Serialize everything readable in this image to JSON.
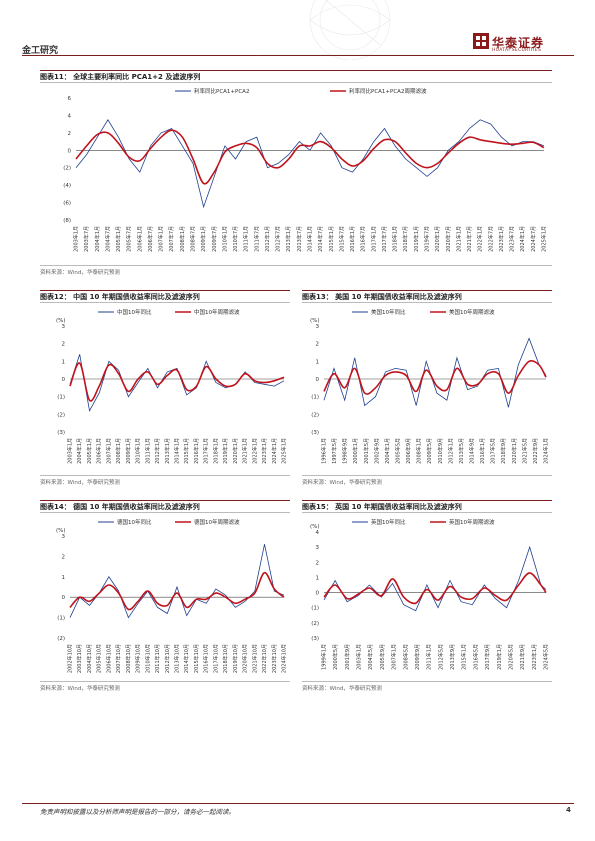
{
  "header": {
    "section": "金工研究",
    "brand_cn": "华泰证券",
    "brand_en": "HUATAI SECURITIES"
  },
  "footer": {
    "disclaimer": "免责声明和披露以及分析师声明是报告的一部分，请务必一起阅读。",
    "page": "4"
  },
  "colors": {
    "blue": "#1f3f8f",
    "red": "#c0141c",
    "brand": "#8b1a1a"
  },
  "figures": [
    {
      "title": "图表11：  全球主要利率同比 PCA1+2 及滤波序列",
      "source": "资料来源：Wind，华泰研究预测",
      "legend": [
        "利率同比PCA1+PCA2",
        "利率同比PCA1+PCA2周期滤波"
      ],
      "unit": "",
      "yticks": [
        "6",
        "4",
        "2",
        "0",
        "(2)",
        "(4)",
        "(6)",
        "(8)"
      ],
      "xticks": [
        "2003年1月",
        "2003年7月",
        "2004年1月",
        "2004年7月",
        "2005年1月",
        "2005年7月",
        "2006年1月",
        "2006年7月",
        "2007年1月",
        "2007年7月",
        "2008年1月",
        "2008年7月",
        "2009年1月",
        "2009年7月",
        "2010年1月",
        "2010年7月",
        "2011年1月",
        "2011年7月",
        "2012年1月",
        "2012年7月",
        "2013年1月",
        "2013年7月",
        "2014年1月",
        "2014年7月",
        "2015年1月",
        "2015年7月",
        "2016年1月",
        "2016年7月",
        "2017年1月",
        "2017年7月",
        "2018年1月",
        "2018年7月",
        "2019年1月",
        "2019年7月",
        "2020年1月",
        "2020年7月",
        "2021年1月",
        "2021年7月",
        "2022年1月",
        "2022年7月",
        "2023年1月",
        "2023年7月",
        "2024年1月",
        "2024年7月",
        "2025年1月"
      ]
    },
    {
      "title": "图表12：  中国 10 年期国债收益率同比及滤波序列",
      "source": "资料来源：Wind，华泰研究预测",
      "legend": [
        "中国10年同比",
        "中国10年周期滤波"
      ],
      "unit": "(%)",
      "yticks": [
        "3",
        "2",
        "1",
        "0",
        "(1)",
        "(2)",
        "(3)"
      ],
      "xticks": [
        "2003年1月",
        "2004年1月",
        "2005年1月",
        "2006年1月",
        "2007年1月",
        "2008年1月",
        "2009年1月",
        "2010年1月",
        "2011年1月",
        "2012年1月",
        "2013年1月",
        "2014年1月",
        "2015年1月",
        "2016年1月",
        "2017年1月",
        "2018年1月",
        "2019年1月",
        "2020年1月",
        "2021年1月",
        "2022年1月",
        "2023年1月",
        "2024年1月",
        "2025年1月"
      ]
    },
    {
      "title": "图表13：  美国 10 年期国债收益率同比及滤波序列",
      "source": "资料来源：Wind，华泰研究预测",
      "legend": [
        "美国10年同比",
        "美国10年周期滤波"
      ],
      "unit": "(%)",
      "yticks": [
        "3",
        "2",
        "1",
        "0",
        "(1)",
        "(2)",
        "(3)"
      ],
      "xticks": [
        "1996年1月",
        "1997年5月",
        "1998年9月",
        "2000年1月",
        "2001年5月",
        "2002年9月",
        "2004年1月",
        "2005年5月",
        "2006年9月",
        "2008年1月",
        "2009年5月",
        "2010年9月",
        "2012年1月",
        "2013年5月",
        "2014年9月",
        "2016年1月",
        "2017年5月",
        "2018年9月",
        "2020年1月",
        "2021年5月",
        "2022年9月",
        "2024年1月"
      ]
    },
    {
      "title": "图表14：  德国 10 年期国债收益率同比及滤波序列",
      "source": "资料来源：Wind，华泰研究预测",
      "legend": [
        "德国10年同比",
        "德国10年周期滤波"
      ],
      "unit": "(%)",
      "yticks": [
        "3",
        "2",
        "1",
        "0",
        "(1)",
        "(2)"
      ],
      "xticks": [
        "2002年10月",
        "2003年10月",
        "2004年10月",
        "2005年10月",
        "2006年10月",
        "2007年10月",
        "2008年10月",
        "2009年10月",
        "2010年10月",
        "2011年10月",
        "2012年10月",
        "2013年10月",
        "2014年10月",
        "2015年10月",
        "2016年10月",
        "2017年10月",
        "2018年10月",
        "2019年10月",
        "2020年10月",
        "2021年10月",
        "2022年10月",
        "2023年10月",
        "2024年10月"
      ]
    },
    {
      "title": "图表15：  英国 10 年期国债收益率同比及滤波序列",
      "source": "资料来源：Wind，华泰研究预测",
      "legend": [
        "英国10年同比",
        "英国10年周期滤波"
      ],
      "unit": "(%)",
      "yticks": [
        "4",
        "3",
        "2",
        "1",
        "0",
        "(1)",
        "(2)",
        "(3)"
      ],
      "xticks": [
        "1999年1月",
        "2000年5月",
        "2001年9月",
        "2003年1月",
        "2004年5月",
        "2005年9月",
        "2007年1月",
        "2008年5月",
        "2009年9月",
        "2011年1月",
        "2012年5月",
        "2013年9月",
        "2015年1月",
        "2016年5月",
        "2017年9月",
        "2019年1月",
        "2020年5月",
        "2021年9月",
        "2023年1月",
        "2024年5月"
      ]
    }
  ],
  "chart_data": [
    {
      "type": "line",
      "title": "图表11：  全球主要利率同比 PCA1+2 及滤波序列",
      "ylim": [
        -8,
        6
      ],
      "x_range": [
        "2003年1月",
        "2025年1月"
      ],
      "series": [
        {
          "name": "利率同比PCA1+PCA2",
          "x": [
            2003.0,
            2003.5,
            2004.0,
            2004.5,
            2005.0,
            2005.5,
            2006.0,
            2006.5,
            2007.0,
            2007.5,
            2008.0,
            2008.5,
            2009.0,
            2009.5,
            2010.0,
            2010.5,
            2011.0,
            2011.5,
            2012.0,
            2012.5,
            2013.0,
            2013.5,
            2014.0,
            2014.5,
            2015.0,
            2015.5,
            2016.0,
            2016.5,
            2017.0,
            2017.5,
            2018.0,
            2018.5,
            2019.0,
            2019.5,
            2020.0,
            2020.5,
            2021.0,
            2021.5,
            2022.0,
            2022.5,
            2023.0,
            2023.5,
            2024.0,
            2024.5,
            2025.0
          ],
          "values": [
            -2.0,
            -0.5,
            1.5,
            3.5,
            1.5,
            -1.0,
            -2.5,
            0.5,
            2.0,
            2.5,
            0.5,
            -1.5,
            -6.5,
            -3.0,
            0.5,
            -1.0,
            1.0,
            1.5,
            -2.0,
            -1.5,
            -0.5,
            1.0,
            0.0,
            2.0,
            0.5,
            -2.0,
            -2.5,
            -1.0,
            1.0,
            2.5,
            0.5,
            -1.0,
            -2.0,
            -3.0,
            -2.0,
            0.0,
            1.0,
            2.5,
            3.5,
            3.0,
            1.5,
            0.5,
            1.0,
            1.0,
            0.5
          ]
        },
        {
          "name": "利率同比PCA1+PCA2周期滤波",
          "x": [
            2003.0,
            2003.5,
            2004.0,
            2004.5,
            2005.0,
            2005.5,
            2006.0,
            2006.5,
            2007.0,
            2007.5,
            2008.0,
            2008.5,
            2009.0,
            2009.5,
            2010.0,
            2010.5,
            2011.0,
            2011.5,
            2012.0,
            2012.5,
            2013.0,
            2013.5,
            2014.0,
            2014.5,
            2015.0,
            2015.5,
            2016.0,
            2016.5,
            2017.0,
            2017.5,
            2018.0,
            2018.5,
            2019.0,
            2019.5,
            2020.0,
            2020.5,
            2021.0,
            2021.5,
            2022.0,
            2022.5,
            2023.0,
            2023.5,
            2024.0,
            2024.5,
            2025.0
          ],
          "values": [
            -1.0,
            0.5,
            1.8,
            2.0,
            0.8,
            -0.8,
            -1.2,
            0.2,
            1.5,
            2.3,
            1.5,
            -1.0,
            -3.8,
            -2.5,
            -0.2,
            0.5,
            0.8,
            0.3,
            -1.5,
            -2.0,
            -1.0,
            0.5,
            0.5,
            1.0,
            0.3,
            -1.0,
            -1.8,
            -1.2,
            0.2,
            1.2,
            1.0,
            -0.3,
            -1.5,
            -2.0,
            -1.5,
            -0.3,
            0.8,
            1.5,
            1.2,
            1.0,
            0.8,
            0.7,
            0.8,
            0.9,
            0.3
          ]
        }
      ]
    },
    {
      "type": "line",
      "title": "图表12：  中国 10 年期国债收益率同比及滤波序列",
      "ylabel": "(%)",
      "ylim": [
        -3,
        3
      ],
      "x_range": [
        "2003年1月",
        "2025年1月"
      ],
      "series": [
        {
          "name": "中国10年同比",
          "x": [
            2003,
            2004,
            2005,
            2006,
            2007,
            2008,
            2009,
            2010,
            2011,
            2012,
            2013,
            2014,
            2015,
            2016,
            2017,
            2018,
            2019,
            2020,
            2021,
            2022,
            2023,
            2024,
            2025
          ],
          "values": [
            -0.3,
            1.4,
            -1.8,
            -0.8,
            1.0,
            0.5,
            -1.0,
            -0.2,
            0.6,
            -0.5,
            0.4,
            0.6,
            -0.9,
            -0.5,
            1.0,
            -0.2,
            -0.5,
            -0.3,
            0.4,
            -0.2,
            -0.3,
            -0.4,
            -0.1
          ]
        },
        {
          "name": "中国10年周期滤波",
          "x": [
            2003,
            2004,
            2005,
            2006,
            2007,
            2008,
            2009,
            2010,
            2011,
            2012,
            2013,
            2014,
            2015,
            2016,
            2017,
            2018,
            2019,
            2020,
            2021,
            2022,
            2023,
            2024,
            2025
          ],
          "values": [
            -0.4,
            0.9,
            -1.2,
            -0.4,
            0.8,
            0.3,
            -0.7,
            0.0,
            0.4,
            -0.3,
            0.2,
            0.5,
            -0.6,
            -0.4,
            0.7,
            0.0,
            -0.4,
            -0.3,
            0.3,
            -0.1,
            -0.2,
            -0.1,
            0.1
          ]
        }
      ]
    },
    {
      "type": "line",
      "title": "图表13：  美国 10 年期国债收益率同比及滤波序列",
      "ylabel": "(%)",
      "ylim": [
        -3,
        3
      ],
      "x_range": [
        "1996年1月",
        "2024年12月"
      ],
      "series": [
        {
          "name": "美国10年同比",
          "x": [
            1996,
            1997.3,
            1998.7,
            2000,
            2001.3,
            2002.7,
            2004,
            2005.3,
            2006.7,
            2008,
            2009.3,
            2010.7,
            2012,
            2013.3,
            2014.7,
            2016,
            2017.3,
            2018.7,
            2020,
            2021.3,
            2022.7,
            2024,
            2024.9
          ],
          "values": [
            -1.2,
            0.6,
            -1.2,
            1.2,
            -1.5,
            -1.0,
            0.4,
            0.6,
            0.5,
            -1.5,
            1.0,
            -0.8,
            -1.2,
            1.2,
            -0.6,
            -0.4,
            0.5,
            0.6,
            -1.6,
            0.8,
            2.3,
            0.8,
            0.2
          ]
        },
        {
          "name": "美国10年周期滤波",
          "x": [
            1996,
            1997.3,
            1998.7,
            2000,
            2001.3,
            2002.7,
            2004,
            2005.3,
            2006.7,
            2008,
            2009.3,
            2010.7,
            2012,
            2013.3,
            2014.7,
            2016,
            2017.3,
            2018.7,
            2020,
            2021.3,
            2022.7,
            2024,
            2024.9
          ],
          "values": [
            -0.7,
            0.3,
            -0.5,
            0.6,
            -0.8,
            -0.5,
            0.2,
            0.4,
            0.2,
            -0.7,
            0.5,
            -0.4,
            -0.6,
            0.6,
            -0.3,
            -0.3,
            0.3,
            0.3,
            -0.8,
            0.2,
            1.0,
            0.8,
            0.1
          ]
        }
      ]
    },
    {
      "type": "line",
      "title": "图表14：  德国 10 年期国债收益率同比及滤波序列",
      "ylabel": "(%)",
      "ylim": [
        -2,
        3
      ],
      "x_range": [
        "2002年10月",
        "2024年10月"
      ],
      "series": [
        {
          "name": "德国10年同比",
          "x": [
            2002.8,
            2003.8,
            2004.8,
            2005.8,
            2006.8,
            2007.8,
            2008.8,
            2009.8,
            2010.8,
            2011.8,
            2012.8,
            2013.8,
            2014.8,
            2015.8,
            2016.8,
            2017.8,
            2018.8,
            2019.8,
            2020.8,
            2021.8,
            2022.8,
            2023.8,
            2024.8
          ],
          "values": [
            -1.0,
            0.0,
            -0.4,
            0.2,
            1.0,
            0.3,
            -1.0,
            -0.3,
            0.3,
            -0.5,
            -0.8,
            0.5,
            -0.9,
            -0.1,
            -0.3,
            0.4,
            0.1,
            -0.5,
            -0.2,
            0.3,
            2.6,
            0.3,
            0.1
          ]
        },
        {
          "name": "德国10年周期滤波",
          "x": [
            2002.8,
            2003.8,
            2004.8,
            2005.8,
            2006.8,
            2007.8,
            2008.8,
            2009.8,
            2010.8,
            2011.8,
            2012.8,
            2013.8,
            2014.8,
            2015.8,
            2016.8,
            2017.8,
            2018.8,
            2019.8,
            2020.8,
            2021.8,
            2022.8,
            2023.8,
            2024.8
          ],
          "values": [
            -0.5,
            0.0,
            -0.2,
            0.2,
            0.6,
            0.2,
            -0.6,
            -0.2,
            0.3,
            -0.3,
            -0.4,
            0.2,
            -0.5,
            -0.1,
            -0.1,
            0.2,
            0.0,
            -0.3,
            -0.1,
            0.2,
            1.2,
            0.4,
            0.0
          ]
        }
      ]
    },
    {
      "type": "line",
      "title": "图表15：  英国 10 年期国债收益率同比及滤波序列",
      "ylabel": "(%)",
      "ylim": [
        -3,
        4
      ],
      "x_range": [
        "1999年1月",
        "2024年12月"
      ],
      "series": [
        {
          "name": "英国10年同比",
          "x": [
            1999,
            2000.3,
            2001.7,
            2003,
            2004.3,
            2005.7,
            2007,
            2008.3,
            2009.7,
            2011,
            2012.3,
            2013.7,
            2015,
            2016.3,
            2017.7,
            2019,
            2020.3,
            2021.7,
            2023,
            2024.3,
            2024.9
          ],
          "values": [
            -0.5,
            0.8,
            -0.6,
            -0.2,
            0.5,
            -0.3,
            0.6,
            -0.8,
            -1.2,
            0.5,
            -1.0,
            0.8,
            -0.6,
            -0.8,
            0.5,
            -0.4,
            -1.0,
            0.8,
            3.0,
            0.5,
            0.2
          ]
        },
        {
          "name": "英国10年周期滤波",
          "x": [
            1999,
            2000.3,
            2001.7,
            2003,
            2004.3,
            2005.7,
            2007,
            2008.3,
            2009.7,
            2011,
            2012.3,
            2013.7,
            2015,
            2016.3,
            2017.7,
            2019,
            2020.3,
            2021.7,
            2023,
            2024.3,
            2024.9
          ],
          "values": [
            -0.3,
            0.5,
            -0.4,
            -0.1,
            0.3,
            -0.2,
            0.9,
            -0.3,
            -0.7,
            0.2,
            -0.5,
            0.4,
            -0.3,
            -0.4,
            0.3,
            -0.2,
            -0.5,
            0.5,
            1.3,
            0.5,
            0.0
          ]
        }
      ]
    }
  ]
}
